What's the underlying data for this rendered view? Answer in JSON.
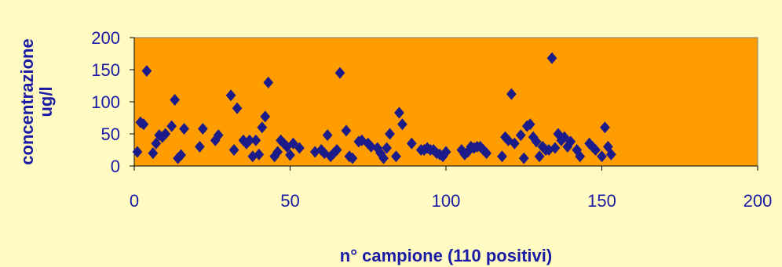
{
  "chart_data": {
    "type": "scatter",
    "title": "",
    "xlabel": "n° campione (110 positivi)",
    "ylabel": [
      "concentrazione",
      "ug/l"
    ],
    "xlim": [
      0,
      200
    ],
    "ylim": [
      0,
      200
    ],
    "x_ticks": [
      "0",
      "50",
      "100",
      "150",
      "200"
    ],
    "y_ticks": [
      "0",
      "50",
      "100",
      "150",
      "200"
    ],
    "grid": false,
    "legend": "none",
    "colors": {
      "plot_bg": "#ff9c00",
      "marker": "#1b1b8a",
      "text": "#1a1aa6",
      "page_bg": "#fffbc2"
    },
    "series": [
      {
        "marker": "diamond",
        "points": [
          [
            1,
            22
          ],
          [
            2,
            68
          ],
          [
            3,
            65
          ],
          [
            4,
            148
          ],
          [
            6,
            20
          ],
          [
            7,
            35
          ],
          [
            8,
            48
          ],
          [
            9,
            45
          ],
          [
            10,
            50
          ],
          [
            12,
            62
          ],
          [
            13,
            103
          ],
          [
            14,
            12
          ],
          [
            15,
            17
          ],
          [
            16,
            58
          ],
          [
            21,
            30
          ],
          [
            22,
            58
          ],
          [
            26,
            40
          ],
          [
            27,
            48
          ],
          [
            31,
            110
          ],
          [
            32,
            25
          ],
          [
            33,
            90
          ],
          [
            35,
            40
          ],
          [
            36,
            35
          ],
          [
            37,
            40
          ],
          [
            38,
            15
          ],
          [
            39,
            40
          ],
          [
            40,
            18
          ],
          [
            41,
            60
          ],
          [
            42,
            77
          ],
          [
            43,
            130
          ],
          [
            45,
            15
          ],
          [
            46,
            22
          ],
          [
            47,
            40
          ],
          [
            48,
            35
          ],
          [
            49,
            30
          ],
          [
            50,
            17
          ],
          [
            51,
            35
          ],
          [
            53,
            28
          ],
          [
            58,
            22
          ],
          [
            60,
            25
          ],
          [
            61,
            20
          ],
          [
            62,
            48
          ],
          [
            63,
            15
          ],
          [
            64,
            20
          ],
          [
            65,
            25
          ],
          [
            66,
            145
          ],
          [
            68,
            55
          ],
          [
            69,
            15
          ],
          [
            70,
            12
          ],
          [
            72,
            38
          ],
          [
            73,
            40
          ],
          [
            75,
            35
          ],
          [
            76,
            30
          ],
          [
            78,
            28
          ],
          [
            79,
            20
          ],
          [
            80,
            12
          ],
          [
            81,
            28
          ],
          [
            82,
            50
          ],
          [
            84,
            15
          ],
          [
            85,
            83
          ],
          [
            86,
            65
          ],
          [
            89,
            35
          ],
          [
            92,
            25
          ],
          [
            93,
            25
          ],
          [
            94,
            28
          ],
          [
            95,
            25
          ],
          [
            96,
            25
          ],
          [
            97,
            20
          ],
          [
            98,
            18
          ],
          [
            99,
            15
          ],
          [
            100,
            22
          ],
          [
            105,
            25
          ],
          [
            106,
            18
          ],
          [
            107,
            22
          ],
          [
            108,
            30
          ],
          [
            109,
            28
          ],
          [
            110,
            30
          ],
          [
            111,
            30
          ],
          [
            112,
            25
          ],
          [
            113,
            20
          ],
          [
            118,
            15
          ],
          [
            119,
            45
          ],
          [
            120,
            40
          ],
          [
            121,
            112
          ],
          [
            122,
            35
          ],
          [
            124,
            48
          ],
          [
            125,
            12
          ],
          [
            126,
            62
          ],
          [
            127,
            65
          ],
          [
            128,
            45
          ],
          [
            129,
            38
          ],
          [
            130,
            15
          ],
          [
            131,
            30
          ],
          [
            132,
            25
          ],
          [
            133,
            25
          ],
          [
            134,
            168
          ],
          [
            135,
            28
          ],
          [
            136,
            50
          ],
          [
            137,
            40
          ],
          [
            138,
            45
          ],
          [
            139,
            30
          ],
          [
            140,
            38
          ],
          [
            142,
            25
          ],
          [
            143,
            15
          ],
          [
            146,
            35
          ],
          [
            147,
            30
          ],
          [
            148,
            25
          ],
          [
            150,
            15
          ],
          [
            151,
            60
          ],
          [
            152,
            30
          ],
          [
            153,
            18
          ]
        ]
      }
    ]
  }
}
